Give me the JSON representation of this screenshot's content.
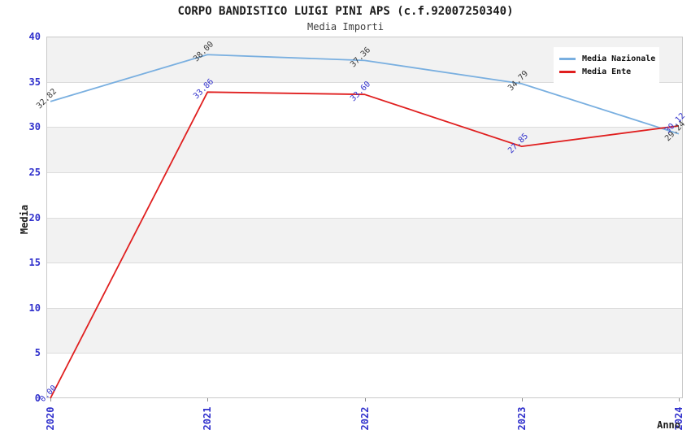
{
  "chart_data": {
    "type": "line",
    "title": "CORPO BANDISTICO LUIGI PINI APS (c.f.92007250340)",
    "subtitle": "Media Importi",
    "xlabel": "Anno",
    "ylabel": "Media",
    "categories": [
      "2020",
      "2021",
      "2022",
      "2023",
      "2024"
    ],
    "yticks": [
      0,
      5,
      10,
      15,
      20,
      25,
      30,
      35,
      40
    ],
    "ylim": [
      0,
      40
    ],
    "ytick_step": 5,
    "grid": true,
    "band_fill": "alternating",
    "legend_position": "top-right",
    "series": [
      {
        "name": "Media Nazionale",
        "values": [
          32.82,
          38.0,
          37.36,
          34.79,
          29.24
        ],
        "labels": [
          "32.82",
          "38.00",
          "37.36",
          "34.79",
          "29.24"
        ],
        "color": "#79afe0",
        "label_color": "#3a3a3a"
      },
      {
        "name": "Media Ente",
        "values": [
          0.0,
          33.86,
          33.6,
          27.85,
          30.12
        ],
        "labels": [
          "0.00",
          "33.86",
          "33.60",
          "27.85",
          "30.12"
        ],
        "color": "#e01f1f",
        "label_color": "#3333cc"
      }
    ],
    "colors": {
      "tick_label": "#3030cc",
      "band_gray": "#f2f2f2",
      "gridline": "#dcdcdc",
      "plot_border": "#c9c9c9",
      "background": "#ffffff"
    }
  }
}
